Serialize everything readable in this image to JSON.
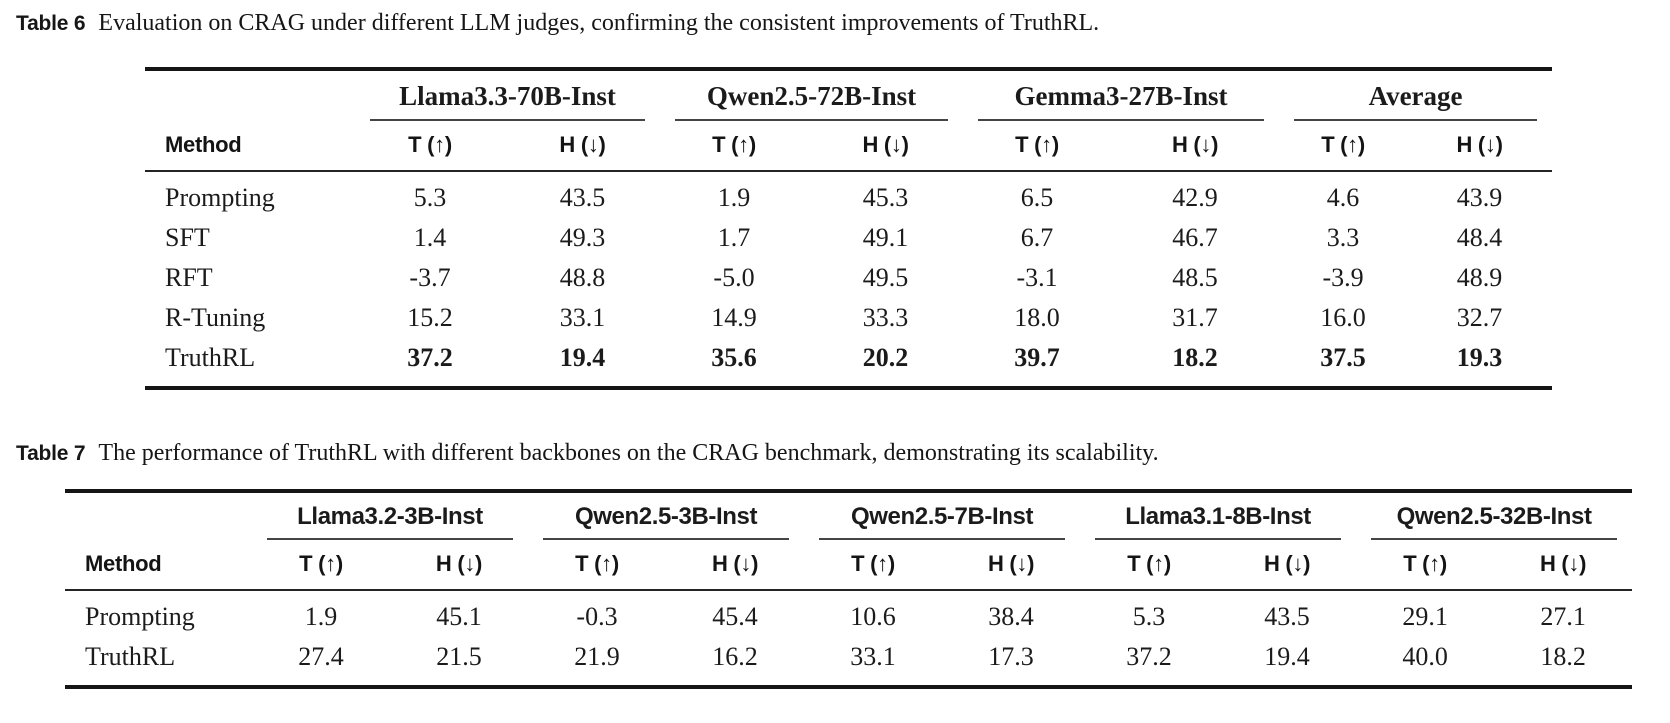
{
  "page": {
    "background": "#ffffff"
  },
  "colors": {
    "text": "#1b1b1b",
    "thick_rule": "#151515",
    "header_rule": "#242424",
    "group_rule": "#454545"
  },
  "tables": [
    {
      "caption_label": "Table 6",
      "caption_text": "Evaluation on CRAG under different LLM judges, confirming the consistent improvements of TruthRL.",
      "method_header": "Method",
      "subheaders": {
        "t": "T (↑)",
        "h": "H (↓)"
      },
      "groups": [
        "Llama3.3-70B-Inst",
        "Qwen2.5-72B-Inst",
        "Gemma3-27B-Inst",
        "Average"
      ],
      "rows": [
        {
          "method": "Prompting",
          "bold_values": false,
          "values": [
            "5.3",
            "43.5",
            "1.9",
            "45.3",
            "6.5",
            "42.9",
            "4.6",
            "43.9"
          ]
        },
        {
          "method": "SFT",
          "bold_values": false,
          "values": [
            "1.4",
            "49.3",
            "1.7",
            "49.1",
            "6.7",
            "46.7",
            "3.3",
            "48.4"
          ]
        },
        {
          "method": "RFT",
          "bold_values": false,
          "values": [
            "-3.7",
            "48.8",
            "-5.0",
            "49.5",
            "-3.1",
            "48.5",
            "-3.9",
            "48.9"
          ]
        },
        {
          "method": "R-Tuning",
          "bold_values": false,
          "values": [
            "15.2",
            "33.1",
            "14.9",
            "33.3",
            "18.0",
            "31.7",
            "16.0",
            "32.7"
          ]
        },
        {
          "method": "TruthRL",
          "bold_values": true,
          "values": [
            "37.2",
            "19.4",
            "35.6",
            "20.2",
            "39.7",
            "18.2",
            "37.5",
            "19.3"
          ]
        }
      ]
    },
    {
      "caption_label": "Table 7",
      "caption_text": "The performance of TruthRL with different backbones on the CRAG benchmark, demonstrating its scalability.",
      "method_header": "Method",
      "subheaders": {
        "t": "T (↑)",
        "h": "H (↓)"
      },
      "groups": [
        "Llama3.2-3B-Inst",
        "Qwen2.5-3B-Inst",
        "Qwen2.5-7B-Inst",
        "Llama3.1-8B-Inst",
        "Qwen2.5-32B-Inst"
      ],
      "rows": [
        {
          "method": "Prompting",
          "bold_values": false,
          "values": [
            "1.9",
            "45.1",
            "-0.3",
            "45.4",
            "10.6",
            "38.4",
            "5.3",
            "43.5",
            "29.1",
            "27.1"
          ]
        },
        {
          "method": "TruthRL",
          "bold_values": false,
          "values": [
            "27.4",
            "21.5",
            "21.9",
            "16.2",
            "33.1",
            "17.3",
            "37.2",
            "19.4",
            "40.0",
            "18.2"
          ]
        }
      ]
    }
  ]
}
